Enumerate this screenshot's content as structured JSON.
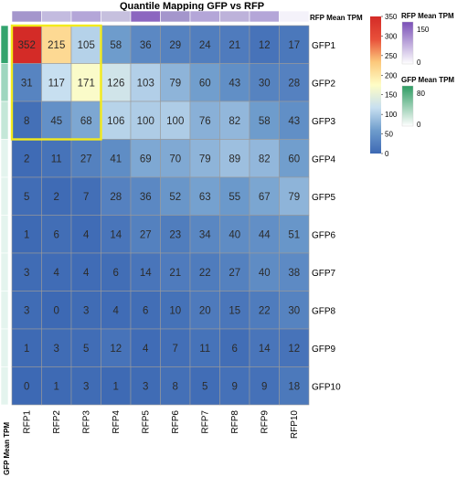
{
  "chart_data": {
    "type": "heatmap",
    "title": "Quantile Mapping GFP vs RFP",
    "columns": [
      "RFP1",
      "RFP2",
      "RFP3",
      "RFP4",
      "RFP5",
      "RFP6",
      "RFP7",
      "RFP8",
      "RFP9",
      "RFP10"
    ],
    "rows": [
      "GFP1",
      "GFP2",
      "GFP3",
      "GFP4",
      "GFP5",
      "GFP6",
      "GFP7",
      "GFP8",
      "GFP9",
      "GFP10"
    ],
    "values": [
      [
        352,
        215,
        105,
        58,
        36,
        29,
        24,
        21,
        12,
        17
      ],
      [
        31,
        117,
        171,
        126,
        103,
        79,
        60,
        43,
        30,
        28
      ],
      [
        8,
        45,
        68,
        106,
        100,
        100,
        76,
        82,
        58,
        43
      ],
      [
        2,
        11,
        27,
        41,
        69,
        70,
        79,
        89,
        82,
        60
      ],
      [
        5,
        2,
        7,
        28,
        36,
        52,
        63,
        55,
        67,
        79
      ],
      [
        1,
        6,
        4,
        14,
        27,
        23,
        34,
        40,
        44,
        51
      ],
      [
        3,
        4,
        4,
        6,
        14,
        21,
        22,
        27,
        40,
        38
      ],
      [
        3,
        0,
        3,
        4,
        6,
        10,
        20,
        15,
        22,
        30
      ],
      [
        1,
        3,
        5,
        12,
        4,
        7,
        11,
        6,
        14,
        12
      ],
      [
        0,
        1,
        3,
        1,
        3,
        8,
        5,
        9,
        9,
        18
      ]
    ],
    "main_legend": {
      "ticks": [
        350,
        300,
        250,
        200,
        150,
        100,
        50,
        0
      ],
      "range": [
        0,
        350
      ],
      "colors": [
        "#3d69b4",
        "#6e9ccc",
        "#c7dff0",
        "#fefdc6",
        "#fcc97c",
        "#e8503a",
        "#d42b27"
      ]
    },
    "column_annotation": {
      "label": "RFP Mean TPM",
      "colors": [
        "#a496cc",
        "#c3bbdf",
        "#b4a6d8",
        "#c6c0de",
        "#8c66c0",
        "#a496cc",
        "#b4a6d8",
        "#bdb2da",
        "#b4a6d8",
        "#f4f2fa"
      ],
      "legend_title": "RFP Mean TPM",
      "legend_ticks": [
        150,
        0
      ],
      "legend_colors": [
        "#7a4fb7",
        "#ffffff"
      ]
    },
    "row_annotation": {
      "label": "GFP Mean TPM",
      "colors": [
        "#33a46e",
        "#9ed6bf",
        "#c4e7d8",
        "#e4f4ee",
        "#e4f4ee",
        "#e4f4ee",
        "#e4f4ee",
        "#e4f4ee",
        "#e4f4ee",
        "#e4f4ee"
      ],
      "legend_title": "GFP Mean TPM",
      "legend_ticks": [
        80,
        0
      ],
      "legend_colors": [
        "#2e9c63",
        "#ffffff"
      ]
    },
    "highlight": {
      "rows": [
        0,
        2
      ],
      "cols": [
        0,
        2
      ],
      "color": "#f3ea1c"
    }
  }
}
